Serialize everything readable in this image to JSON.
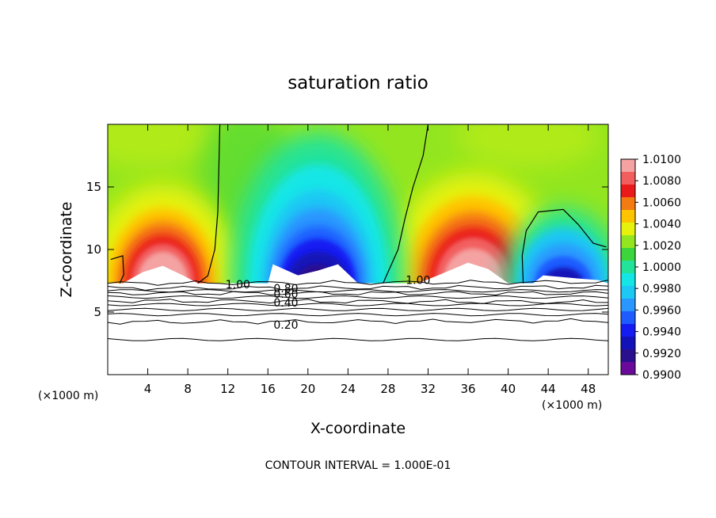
{
  "chart_data": {
    "type": "heatmap",
    "title": "saturation ratio",
    "xlabel": "X-coordinate",
    "ylabel": "Z-coordinate",
    "x_unit": "(×1000 m)",
    "footer": "CONTOUR INTERVAL = 1.000E-01",
    "xlim": [
      0,
      50
    ],
    "ylim": [
      0,
      20
    ],
    "x_ticks": [
      4,
      8,
      12,
      16,
      20,
      24,
      28,
      32,
      36,
      40,
      44,
      48
    ],
    "y_ticks": [
      5,
      10,
      15
    ],
    "colorbar": {
      "levels": [
        "1.0100",
        "1.0080",
        "1.0060",
        "1.0040",
        "1.0020",
        "1.0000",
        "0.9980",
        "0.9960",
        "0.9940",
        "0.9920",
        "0.9900"
      ],
      "colors": [
        "#f4a2a2",
        "#f25e5e",
        "#ea1a1a",
        "#f47a12",
        "#ffc400",
        "#e7f20c",
        "#93e61f",
        "#3cd63c",
        "#22e39a",
        "#14e6e6",
        "#1dc8f4",
        "#2a96ff",
        "#1e5cff",
        "#141cf2",
        "#1212b8",
        "#2a0f8e",
        "#6a0a9a"
      ]
    },
    "contour_labels": [
      "1.00",
      "1.00",
      "0.80",
      "0.60",
      "0.40",
      "0.20"
    ],
    "contours": [
      {
        "label": "1.00",
        "z_at_x": [
          [
            0,
            7.3
          ],
          [
            50,
            7.4
          ]
        ]
      },
      {
        "label": "0.80",
        "z_at_x": [
          [
            0,
            6.9
          ],
          [
            50,
            7.0
          ]
        ]
      },
      {
        "label": "0.60",
        "z_at_x": [
          [
            0,
            6.5
          ],
          [
            50,
            6.5
          ]
        ]
      },
      {
        "label": "0.40",
        "z_at_x": [
          [
            0,
            5.9
          ],
          [
            50,
            5.8
          ]
        ]
      },
      {
        "label": "0.20",
        "z_at_x": [
          [
            0,
            4.2
          ],
          [
            50,
            4.3
          ]
        ]
      }
    ],
    "features": [
      {
        "kind": "max",
        "x_center": 5.5,
        "z_top": 11.0,
        "peak": 1.01
      },
      {
        "kind": "min",
        "x_center": 21.0,
        "z_top": 13.0,
        "peak": 0.99
      },
      {
        "kind": "max",
        "x_center": 36.5,
        "z_top": 12.5,
        "peak": 1.01
      },
      {
        "kind": "min",
        "x_center": 45.0,
        "z_top": 12.0,
        "peak": 0.992
      }
    ],
    "background_value": 1.0,
    "grid": false,
    "legend_position": "right"
  }
}
